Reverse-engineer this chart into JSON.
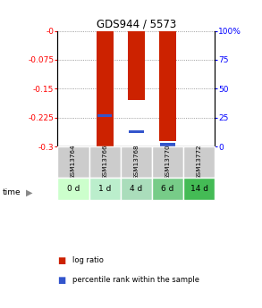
{
  "title": "GDS944 / 5573",
  "samples": [
    "GSM13764",
    "GSM13766",
    "GSM13768",
    "GSM13770",
    "GSM13772"
  ],
  "time_labels": [
    "0 d",
    "1 d",
    "4 d",
    "6 d",
    "14 d"
  ],
  "log_ratios": [
    0.0,
    -0.302,
    -0.178,
    -0.285,
    0.0
  ],
  "percentile_ranks": [
    null,
    27,
    13,
    2,
    null
  ],
  "ylim_left": [
    -0.3,
    0.0
  ],
  "yticks_left": [
    0.0,
    -0.075,
    -0.15,
    -0.225,
    -0.3
  ],
  "ytick_labels_left": [
    "-0",
    "-0.075",
    "-0.15",
    "-0.225",
    "-0.3"
  ],
  "ylim_right": [
    0,
    100
  ],
  "yticks_right": [
    0,
    25,
    50,
    75,
    100
  ],
  "ytick_labels_right": [
    "0",
    "25",
    "50",
    "75",
    "100%"
  ],
  "bar_color": "#cc2200",
  "percentile_color": "#3355cc",
  "bar_width": 0.55,
  "sample_bg_color": "#cccccc",
  "time_bg_colors": [
    "#ccffcc",
    "#bbeecc",
    "#aaddbb",
    "#77cc88",
    "#44bb55"
  ],
  "legend_items": [
    "log ratio",
    "percentile rank within the sample"
  ],
  "legend_colors": [
    "#cc2200",
    "#3355cc"
  ]
}
